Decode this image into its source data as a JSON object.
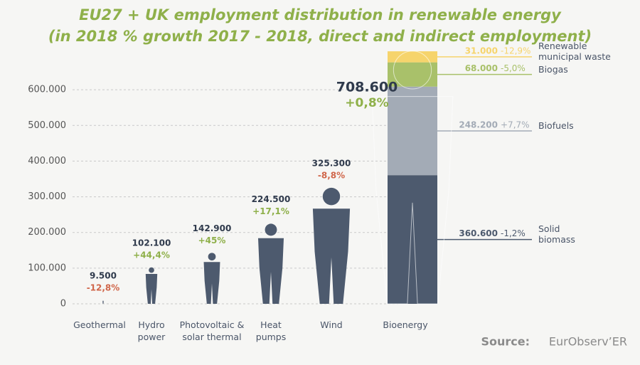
{
  "chart_data": {
    "type": "pictogram",
    "title": "EU27 + UK employment distribution in renewable energy",
    "subtitle": "(in 2018 % growth 2017 - 2018, direct and indirect employment)",
    "categories": [
      "Geothermal",
      "Hydro\npower",
      "Photovoltaic &\nsolar thermal",
      "Heat\npumps",
      "Wind",
      "Bioenergy"
    ],
    "values": [
      9500,
      102100,
      142900,
      224500,
      325300,
      708600
    ],
    "value_labels": [
      "9.500",
      "102.100",
      "142.900",
      "224.500",
      "325.300",
      "708.600"
    ],
    "growth": [
      -12.8,
      44.4,
      45,
      17.1,
      -8.8,
      0.8
    ],
    "growth_labels": [
      "-12,8%",
      "+44,4%",
      "+45%",
      "+17,1%",
      "-8,8%",
      "+0,8%"
    ],
    "color": "#4d5a6e",
    "positive_color": "#8fb04a",
    "negative_color": "#d0664a",
    "ylim": [
      0,
      700000
    ],
    "yticks": [
      0,
      {
        "value": 100000,
        "label": "100.000"
      },
      {
        "value": 200000,
        "label": "200.000"
      },
      {
        "value": 300000,
        "label": "300.000"
      },
      {
        "value": 400000,
        "label": "400.000"
      },
      {
        "value": 500000,
        "label": "500.000"
      },
      {
        "value": 600000,
        "label": "600.000"
      }
    ],
    "grid": true,
    "breakdown": [
      {
        "name": "Solid\nbiomass",
        "color": "#4d5a6e",
        "value": 360600,
        "value_label": "360.600",
        "growth": -1.2,
        "growth_label": "-1,2%"
      },
      {
        "name": "Biofuels",
        "color": "#a3abb6",
        "value": 248200,
        "value_label": "248.200",
        "growth": 7.7,
        "growth_label": "+7,7%"
      },
      {
        "name": "Biogas",
        "color": "#a9c16a",
        "value": 68000,
        "value_label": "68.000",
        "growth": -5.0,
        "growth_label": "-5,0%"
      },
      {
        "name": "Renewable\nmunicipal waste",
        "color": "#f6d46c",
        "value": 31000,
        "value_label": "31.000",
        "growth": -12.9,
        "growth_label": "-12,9%"
      }
    ],
    "source_label": "Source:",
    "source": "EurObserv’ER"
  }
}
